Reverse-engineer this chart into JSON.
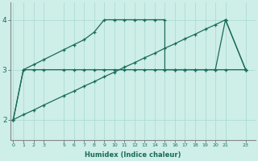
{
  "line1_x": [
    0,
    1,
    2,
    3,
    5,
    6,
    7,
    8,
    9,
    10,
    11,
    12,
    13,
    14,
    15,
    16,
    17,
    18,
    19,
    20,
    21,
    23
  ],
  "line1_y": [
    2.0,
    3.0,
    3.0,
    3.0,
    3.0,
    3.0,
    3.0,
    3.0,
    3.0,
    3.0,
    3.0,
    3.0,
    3.0,
    3.0,
    3.0,
    3.0,
    3.0,
    3.0,
    3.0,
    3.0,
    3.0,
    3.0
  ],
  "line2_x": [
    0,
    1,
    2,
    3,
    5,
    6,
    7,
    8,
    9,
    10,
    11,
    12,
    13,
    14,
    15,
    16,
    17,
    18,
    19,
    20,
    21,
    23
  ],
  "line2_y": [
    2.0,
    2.1,
    2.19,
    2.29,
    2.48,
    2.57,
    2.67,
    2.76,
    2.86,
    2.95,
    3.05,
    3.14,
    3.24,
    3.33,
    3.43,
    3.52,
    3.62,
    3.71,
    3.81,
    3.9,
    4.0,
    3.0
  ],
  "line3_x": [
    0,
    1,
    2,
    3,
    5,
    6,
    7,
    8,
    9,
    10,
    11,
    12,
    13,
    14,
    15,
    15,
    16,
    17,
    18,
    19,
    20,
    21,
    21,
    23
  ],
  "line3_y": [
    2.0,
    3.0,
    3.1,
    3.2,
    3.4,
    3.5,
    3.6,
    3.75,
    4.0,
    4.0,
    4.0,
    4.0,
    4.0,
    4.0,
    4.0,
    3.0,
    3.0,
    3.0,
    3.0,
    3.0,
    3.0,
    4.0,
    4.0,
    3.0
  ],
  "line_color": "#1a6b5a",
  "bg_color": "#ceeee8",
  "grid_color": "#aad8d2",
  "xlabel": "Humidex (Indice chaleur)",
  "xticks": [
    0,
    1,
    2,
    3,
    5,
    6,
    7,
    8,
    9,
    10,
    11,
    12,
    13,
    14,
    15,
    16,
    17,
    18,
    19,
    20,
    21,
    23
  ],
  "yticks": [
    2,
    3,
    4
  ],
  "ylim": [
    1.6,
    4.35
  ],
  "xlim": [
    -0.3,
    24.0
  ]
}
